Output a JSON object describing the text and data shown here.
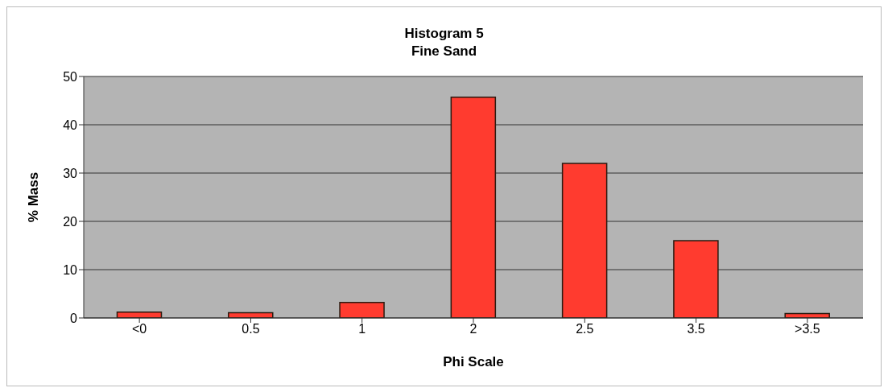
{
  "chart_data": {
    "type": "bar",
    "title": "Histogram 5",
    "subtitle": "Fine Sand",
    "xlabel": "Phi Scale",
    "ylabel": "% Mass",
    "categories": [
      "<0",
      "0.5",
      "1",
      "2",
      "2.5",
      "3.5",
      ">3.5"
    ],
    "values": [
      1.2,
      1.1,
      3.2,
      45.7,
      32.0,
      16.0,
      0.9
    ],
    "color": "#ff3b2f",
    "ylim": [
      0,
      50
    ],
    "yticks": [
      0,
      10,
      20,
      30,
      40,
      50
    ],
    "grid": "y"
  }
}
